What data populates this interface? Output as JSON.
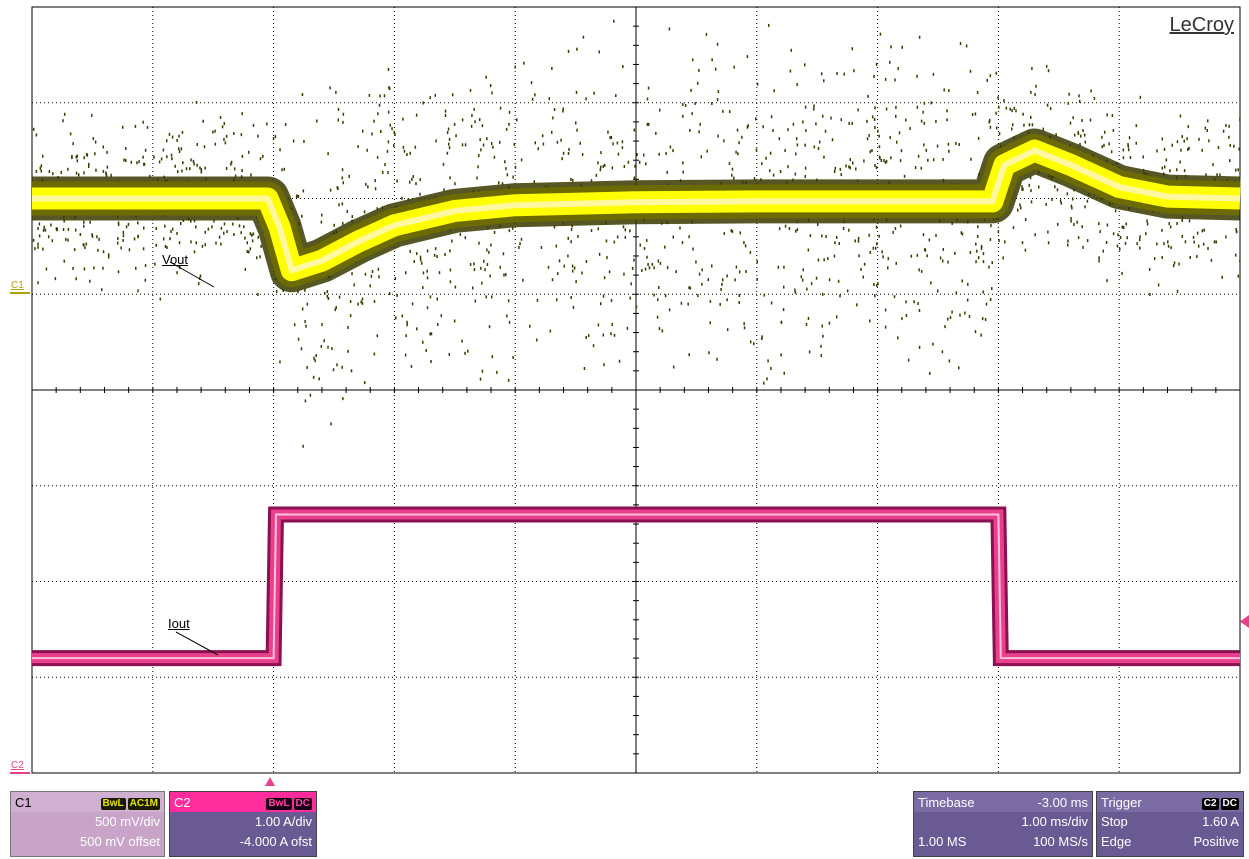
{
  "brand": "LeCroy",
  "colors": {
    "ch1": "#ffff00",
    "ch1_dark": "#3a3a00",
    "ch2": "#e8408c",
    "grid": "#000000"
  },
  "markers": {
    "c1": "C1",
    "c2": "C2"
  },
  "trace_labels": {
    "vout": "Vout",
    "iout": "Iout"
  },
  "channel1": {
    "name": "C1",
    "badges": [
      "BwL",
      "AC1M"
    ],
    "scale": "500 mV/div",
    "offset": "500 mV offset"
  },
  "channel2": {
    "name": "C2",
    "badges": [
      "BwL",
      "DC"
    ],
    "scale": "1.00 A/div",
    "offset": "-4.000 A ofst"
  },
  "timebase": {
    "label": "Timebase",
    "delay": "-3.00 ms",
    "per_div": "1.00 ms/div",
    "memory": "1.00 MS",
    "rate": "100 MS/s"
  },
  "trigger": {
    "label": "Trigger",
    "badges": [
      "C2",
      "DC"
    ],
    "mode": "Stop",
    "level": "1.60 A",
    "type": "Edge",
    "slope": "Positive"
  },
  "chart_data": {
    "type": "line",
    "grid": {
      "x_divisions": 10,
      "y_divisions": 8
    },
    "x_unit": "ms",
    "x_range": [
      -8.0,
      2.0
    ],
    "series": [
      {
        "name": "Vout",
        "channel": "C1",
        "unit": "div",
        "points": [
          [
            -8.0,
            2.0
          ],
          [
            -6.05,
            2.0
          ],
          [
            -5.95,
            1.7
          ],
          [
            -5.85,
            1.25
          ],
          [
            -5.6,
            1.35
          ],
          [
            -5.3,
            1.55
          ],
          [
            -5.0,
            1.72
          ],
          [
            -4.5,
            1.87
          ],
          [
            -4.0,
            1.93
          ],
          [
            -3.0,
            1.96
          ],
          [
            -2.0,
            1.97
          ],
          [
            -1.0,
            1.97
          ],
          [
            -0.05,
            1.97
          ],
          [
            0.05,
            2.35
          ],
          [
            0.3,
            2.5
          ],
          [
            0.6,
            2.35
          ],
          [
            1.0,
            2.12
          ],
          [
            1.4,
            2.02
          ],
          [
            2.0,
            2.0
          ]
        ]
      },
      {
        "name": "Iout",
        "channel": "C2",
        "unit": "A",
        "points": [
          [
            -8.0,
            1.2
          ],
          [
            -6.02,
            1.2
          ],
          [
            -6.0,
            1.2
          ],
          [
            -5.98,
            2.7
          ],
          [
            -0.02,
            2.7
          ],
          [
            0.0,
            2.7
          ],
          [
            0.02,
            1.2
          ],
          [
            2.0,
            1.2
          ]
        ]
      }
    ]
  }
}
